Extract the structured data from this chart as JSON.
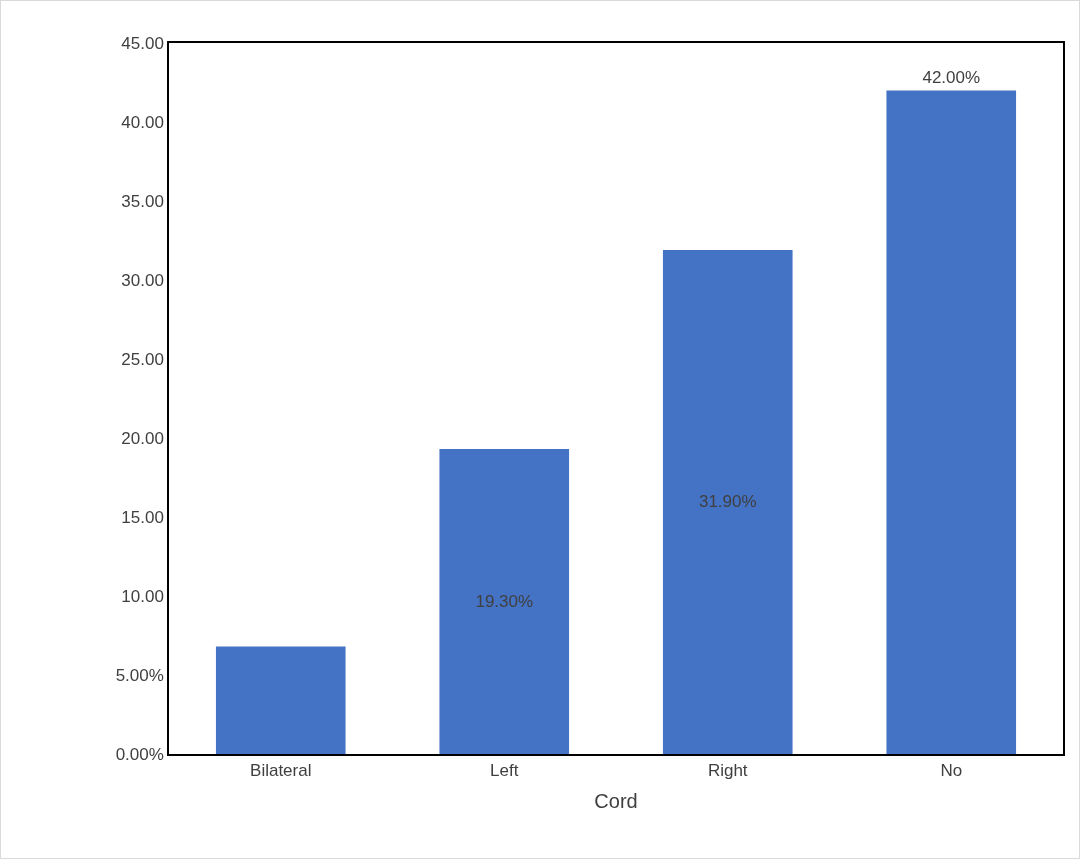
{
  "chart_data": {
    "type": "bar",
    "xlabel": "Cord",
    "categories": [
      "Bilateral",
      "Left",
      "Right",
      "No"
    ],
    "values": [
      6.8,
      19.3,
      31.9,
      42.0
    ],
    "value_labels": [
      null,
      "19.30%",
      "31.90%",
      "42.00%"
    ],
    "color": "#4472c4",
    "ylim": [
      0,
      45
    ],
    "yticks": [
      {
        "value": 0,
        "label": "0.00%"
      },
      {
        "value": 5,
        "label": "5.00%"
      },
      {
        "value": 10,
        "label": "10.00"
      },
      {
        "value": 15,
        "label": "15.00"
      },
      {
        "value": 20,
        "label": "20.00"
      },
      {
        "value": 25,
        "label": "25.00"
      },
      {
        "value": 30,
        "label": "30.00"
      },
      {
        "value": 35,
        "label": "35.00"
      },
      {
        "value": 40,
        "label": "40.00"
      },
      {
        "value": 45,
        "label": "45.00"
      }
    ],
    "grid": false,
    "legend": false
  }
}
